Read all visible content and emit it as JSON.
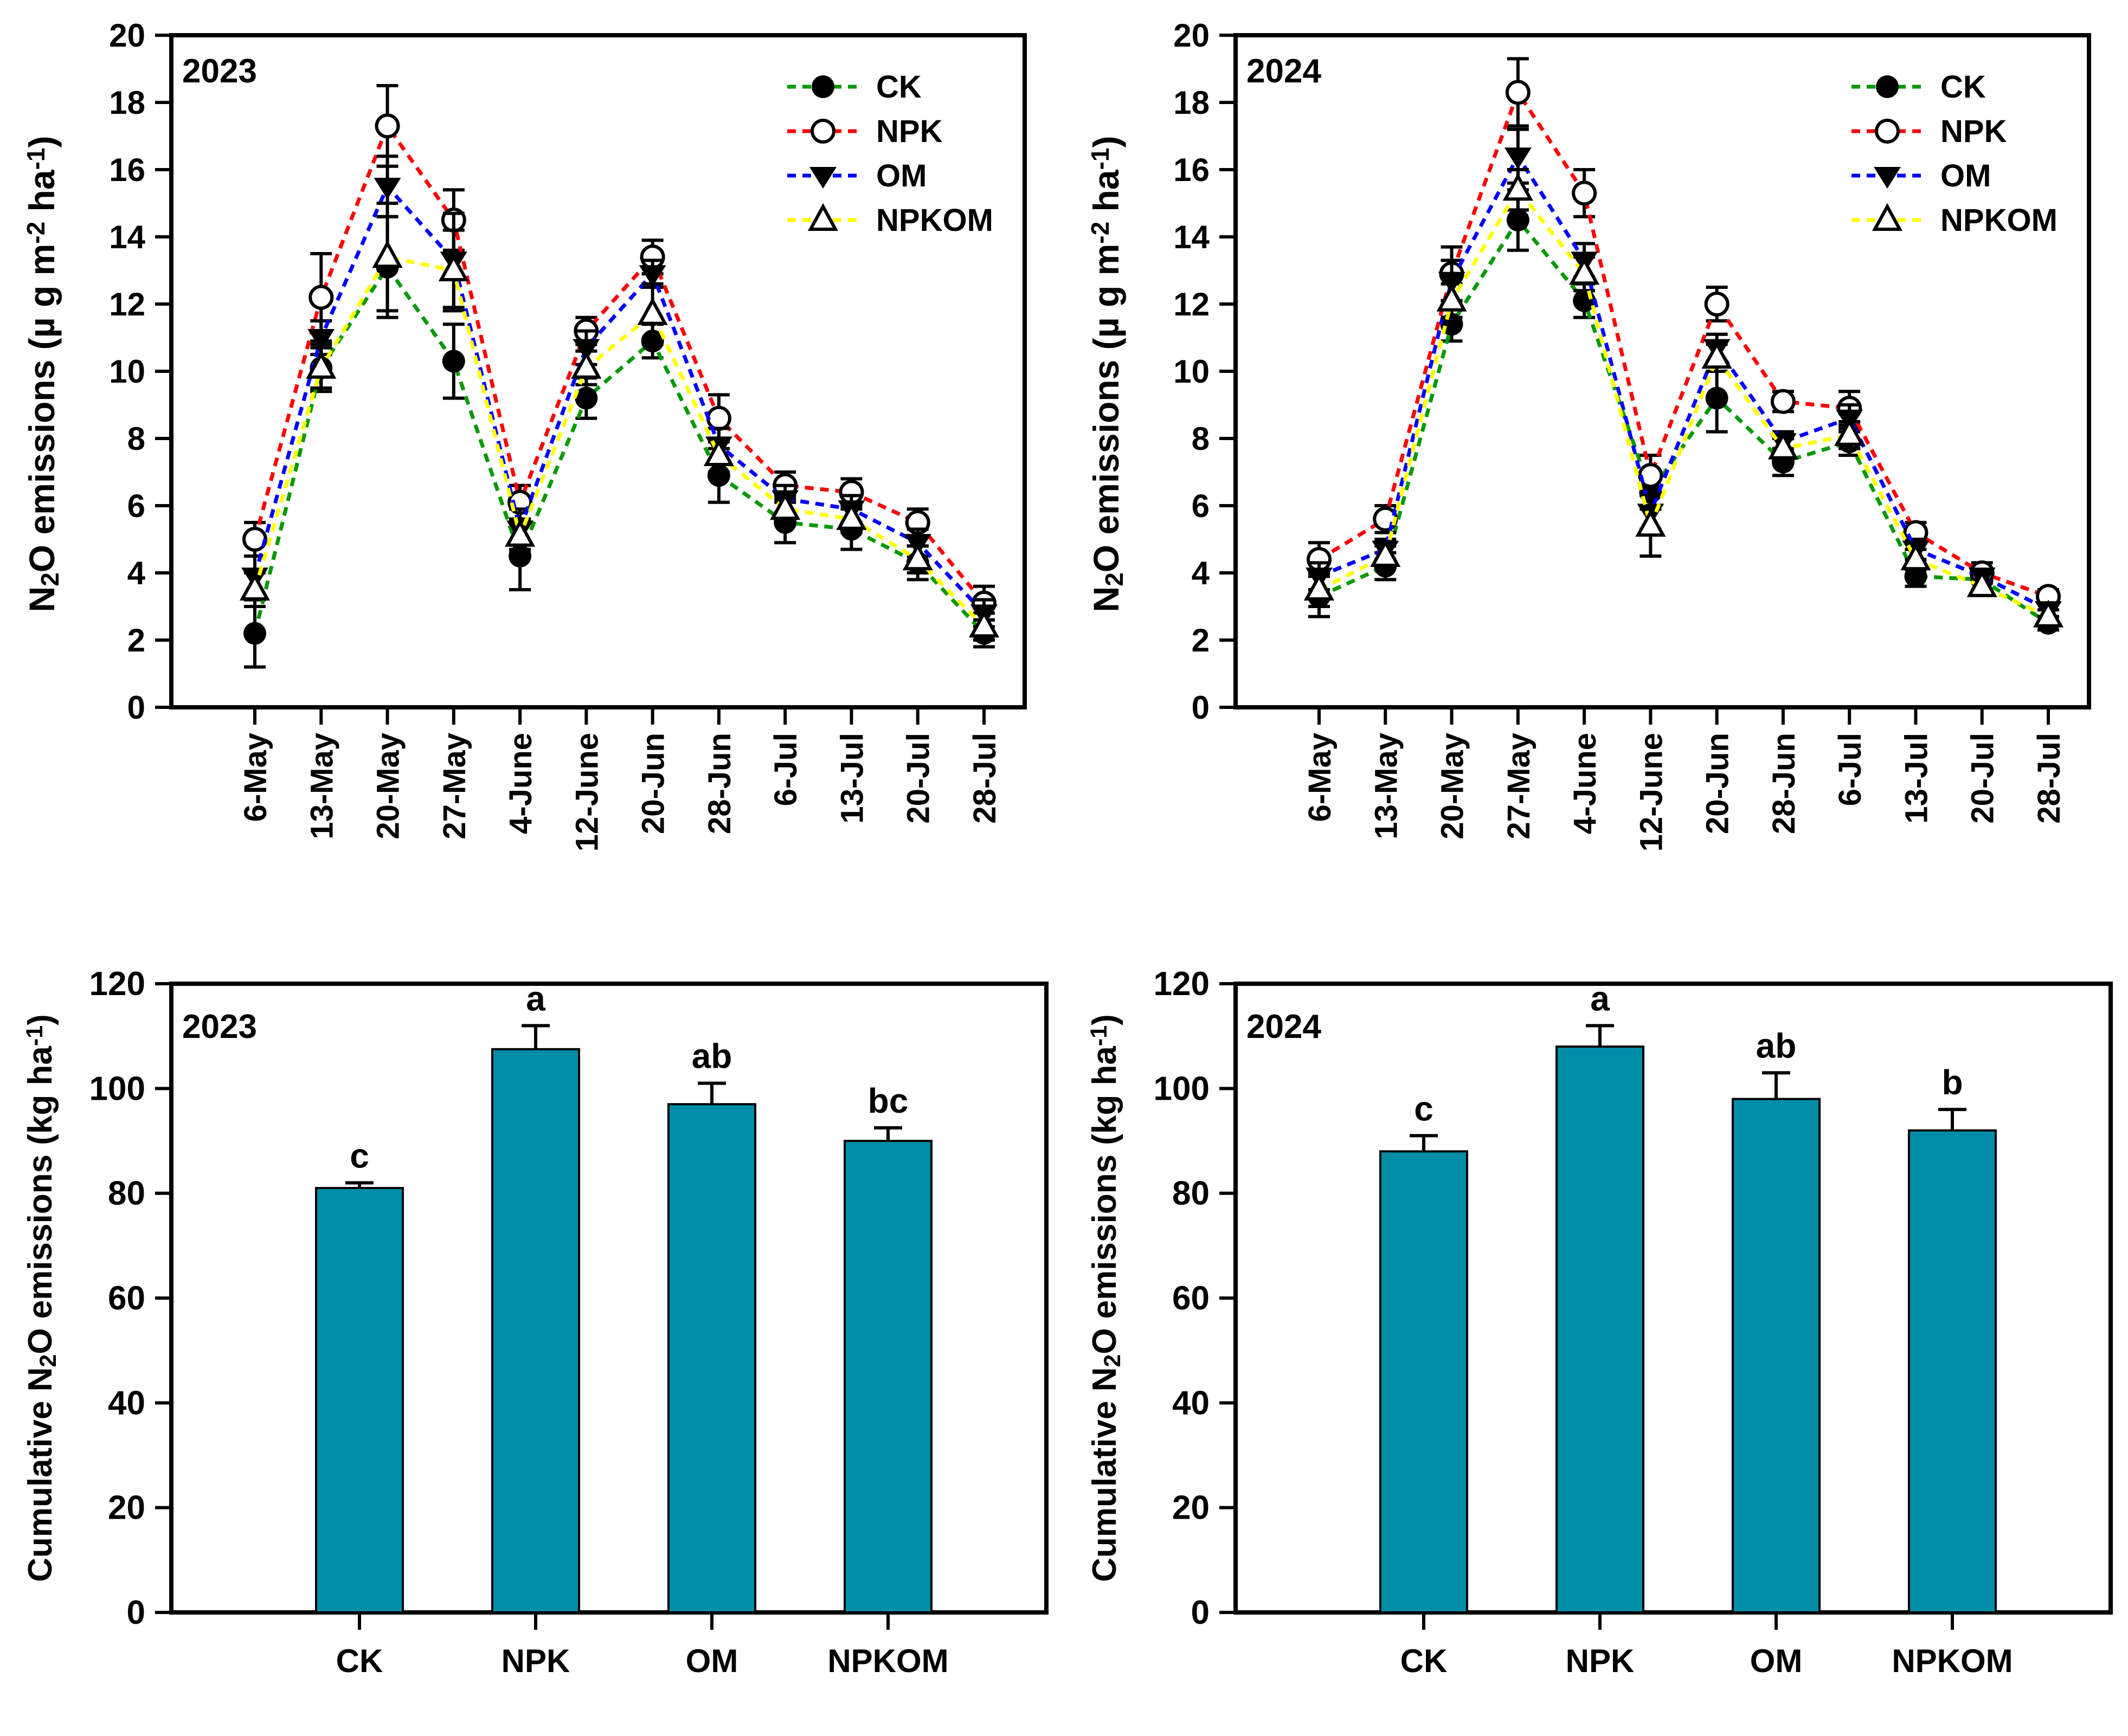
{
  "figure": {
    "background": "#ffffff",
    "axis_color": "#000000",
    "bar_fill": "#008DA8"
  },
  "chart_data": [
    {
      "id": "line-2023",
      "type": "line",
      "year_label": "2023",
      "ylabel_segments": [
        {
          "t": "N"
        },
        {
          "t": "2",
          "style": "sub"
        },
        {
          "t": "O emissions (µ g m"
        },
        {
          "t": "-2",
          "style": "sup"
        },
        {
          "t": " ha"
        },
        {
          "t": "-1",
          "style": "sup"
        },
        {
          "t": ")"
        }
      ],
      "ylim": [
        0,
        20
      ],
      "ytick_step": 2,
      "ytick_labels": [
        "0",
        "2",
        "4",
        "6",
        "8",
        "10",
        "12",
        "14",
        "16",
        "18",
        "20"
      ],
      "categories": [
        "6-May",
        "13-May",
        "20-May",
        "27-May",
        "4-June",
        "12-June",
        "20-Jun",
        "28-Jun",
        "6-Jul",
        "13-Jul",
        "20-Jul",
        "28-Jul"
      ],
      "legend": [
        "CK",
        "NPK",
        "OM",
        "NPKOM"
      ],
      "series": [
        {
          "name": "CK",
          "color": "#009900",
          "marker": "filled-circle",
          "values": [
            2.2,
            10.1,
            13.1,
            10.3,
            4.5,
            9.2,
            10.9,
            6.9,
            5.5,
            5.3,
            4.3,
            2.2
          ],
          "errors": [
            1.0,
            0.7,
            1.5,
            1.1,
            1.0,
            0.6,
            0.5,
            0.8,
            0.6,
            0.6,
            0.5,
            0.4
          ]
        },
        {
          "name": "NPK",
          "color": "#FF0000",
          "marker": "open-circle",
          "values": [
            5.0,
            12.2,
            17.3,
            14.5,
            6.1,
            11.2,
            13.4,
            8.6,
            6.6,
            6.4,
            5.5,
            3.1
          ],
          "errors": [
            0.5,
            1.3,
            1.2,
            0.9,
            0.5,
            0.4,
            0.5,
            0.7,
            0.4,
            0.4,
            0.4,
            0.5
          ]
        },
        {
          "name": "OM",
          "color": "#0000FF",
          "marker": "filled-triangle-down",
          "values": [
            3.9,
            11.0,
            15.5,
            13.3,
            5.3,
            10.7,
            12.9,
            7.8,
            6.2,
            5.9,
            4.9,
            2.8
          ],
          "errors": [
            0.6,
            0.5,
            0.9,
            1.4,
            0.6,
            0.5,
            0.4,
            0.5,
            0.4,
            0.4,
            0.4,
            0.4
          ]
        },
        {
          "name": "NPKOM",
          "color": "#FFFF00",
          "marker": "open-triangle-up",
          "values": [
            3.5,
            10.1,
            13.4,
            13.0,
            5.1,
            10.1,
            11.7,
            7.5,
            5.9,
            5.6,
            4.4,
            2.4
          ],
          "errors": [
            0.5,
            0.6,
            1.6,
            1.2,
            0.5,
            0.5,
            0.9,
            0.5,
            0.4,
            0.4,
            0.4,
            0.4
          ]
        }
      ]
    },
    {
      "id": "line-2024",
      "type": "line",
      "year_label": "2024",
      "ylabel_segments": [
        {
          "t": "N"
        },
        {
          "t": "2",
          "style": "sub"
        },
        {
          "t": "O emissions (µ g m"
        },
        {
          "t": "-2",
          "style": "sup"
        },
        {
          "t": " ha"
        },
        {
          "t": "-1",
          "style": "sup"
        },
        {
          "t": ")"
        }
      ],
      "ylim": [
        0,
        20
      ],
      "ytick_step": 2,
      "ytick_labels": [
        "0",
        "2",
        "4",
        "6",
        "8",
        "10",
        "12",
        "14",
        "16",
        "18",
        "20"
      ],
      "categories": [
        "6-May",
        "13-May",
        "20-May",
        "27-May",
        "4-June",
        "12-June",
        "20-Jun",
        "28-Jun",
        "6-Jul",
        "13-Jul",
        "20-Jul",
        "28-Jul"
      ],
      "legend": [
        "CK",
        "NPK",
        "OM",
        "NPKOM"
      ],
      "series": [
        {
          "name": "CK",
          "color": "#009900",
          "marker": "filled-circle",
          "values": [
            3.3,
            4.2,
            11.4,
            14.5,
            12.1,
            6.4,
            9.2,
            7.3,
            7.9,
            3.9,
            3.8,
            2.5
          ],
          "errors": [
            0.6,
            0.4,
            0.5,
            0.9,
            0.5,
            0.5,
            1.0,
            0.4,
            0.4,
            0.3,
            0.3,
            0.2
          ]
        },
        {
          "name": "NPK",
          "color": "#FF0000",
          "marker": "open-circle",
          "values": [
            4.4,
            5.6,
            12.9,
            18.3,
            15.3,
            6.9,
            12.0,
            9.1,
            8.9,
            5.2,
            4.0,
            3.3
          ],
          "errors": [
            0.5,
            0.4,
            0.8,
            1.0,
            0.7,
            0.6,
            0.5,
            0.3,
            0.5,
            0.3,
            0.3,
            0.2
          ]
        },
        {
          "name": "OM",
          "color": "#0000FF",
          "marker": "filled-triangle-down",
          "values": [
            3.9,
            4.7,
            12.7,
            16.4,
            13.3,
            5.8,
            10.7,
            7.9,
            8.6,
            4.7,
            3.9,
            2.9
          ],
          "errors": [
            0.4,
            0.3,
            0.6,
            0.8,
            0.5,
            0.5,
            0.4,
            0.3,
            0.4,
            0.3,
            0.2,
            0.2
          ]
        },
        {
          "name": "NPKOM",
          "color": "#FFFF00",
          "marker": "open-triangle-up",
          "values": [
            3.5,
            4.5,
            12.1,
            15.4,
            12.9,
            5.4,
            10.4,
            7.7,
            8.1,
            4.4,
            3.6,
            2.7
          ],
          "errors": [
            0.5,
            0.3,
            0.5,
            0.6,
            0.5,
            0.9,
            0.4,
            0.3,
            0.4,
            0.3,
            0.2,
            0.2
          ]
        }
      ]
    },
    {
      "id": "bar-2023",
      "type": "bar",
      "year_label": "2023",
      "ylabel_segments": [
        {
          "t": "Cumulative N"
        },
        {
          "t": "2",
          "style": "sub"
        },
        {
          "t": "O emissions (kg ha"
        },
        {
          "t": "-1",
          "style": "sup"
        },
        {
          "t": ")"
        }
      ],
      "ylim": [
        0,
        120
      ],
      "ytick_step": 20,
      "ytick_labels": [
        "0",
        "20",
        "40",
        "60",
        "80",
        "100",
        "120"
      ],
      "categories": [
        "CK",
        "NPK",
        "OM",
        "NPKOM"
      ],
      "values": [
        81,
        107.5,
        97,
        90
      ],
      "errors": [
        1,
        4.5,
        4,
        2.5
      ],
      "letters": [
        "c",
        "a",
        "ab",
        "bc"
      ],
      "bar_color": "#008DA8"
    },
    {
      "id": "bar-2024",
      "type": "bar",
      "year_label": "2024",
      "ylabel_segments": [
        {
          "t": "Cumulative N"
        },
        {
          "t": "2",
          "style": "sub"
        },
        {
          "t": "O emissions (kg ha"
        },
        {
          "t": "-1",
          "style": "sup"
        },
        {
          "t": ")"
        }
      ],
      "ylim": [
        0,
        120
      ],
      "ytick_step": 20,
      "ytick_labels": [
        "0",
        "20",
        "40",
        "60",
        "80",
        "100",
        "120"
      ],
      "categories": [
        "CK",
        "NPK",
        "OM",
        "NPKOM"
      ],
      "values": [
        88,
        108,
        98,
        92
      ],
      "errors": [
        3,
        4,
        5,
        4
      ],
      "letters": [
        "c",
        "a",
        "ab",
        "b"
      ],
      "bar_color": "#008DA8"
    }
  ]
}
